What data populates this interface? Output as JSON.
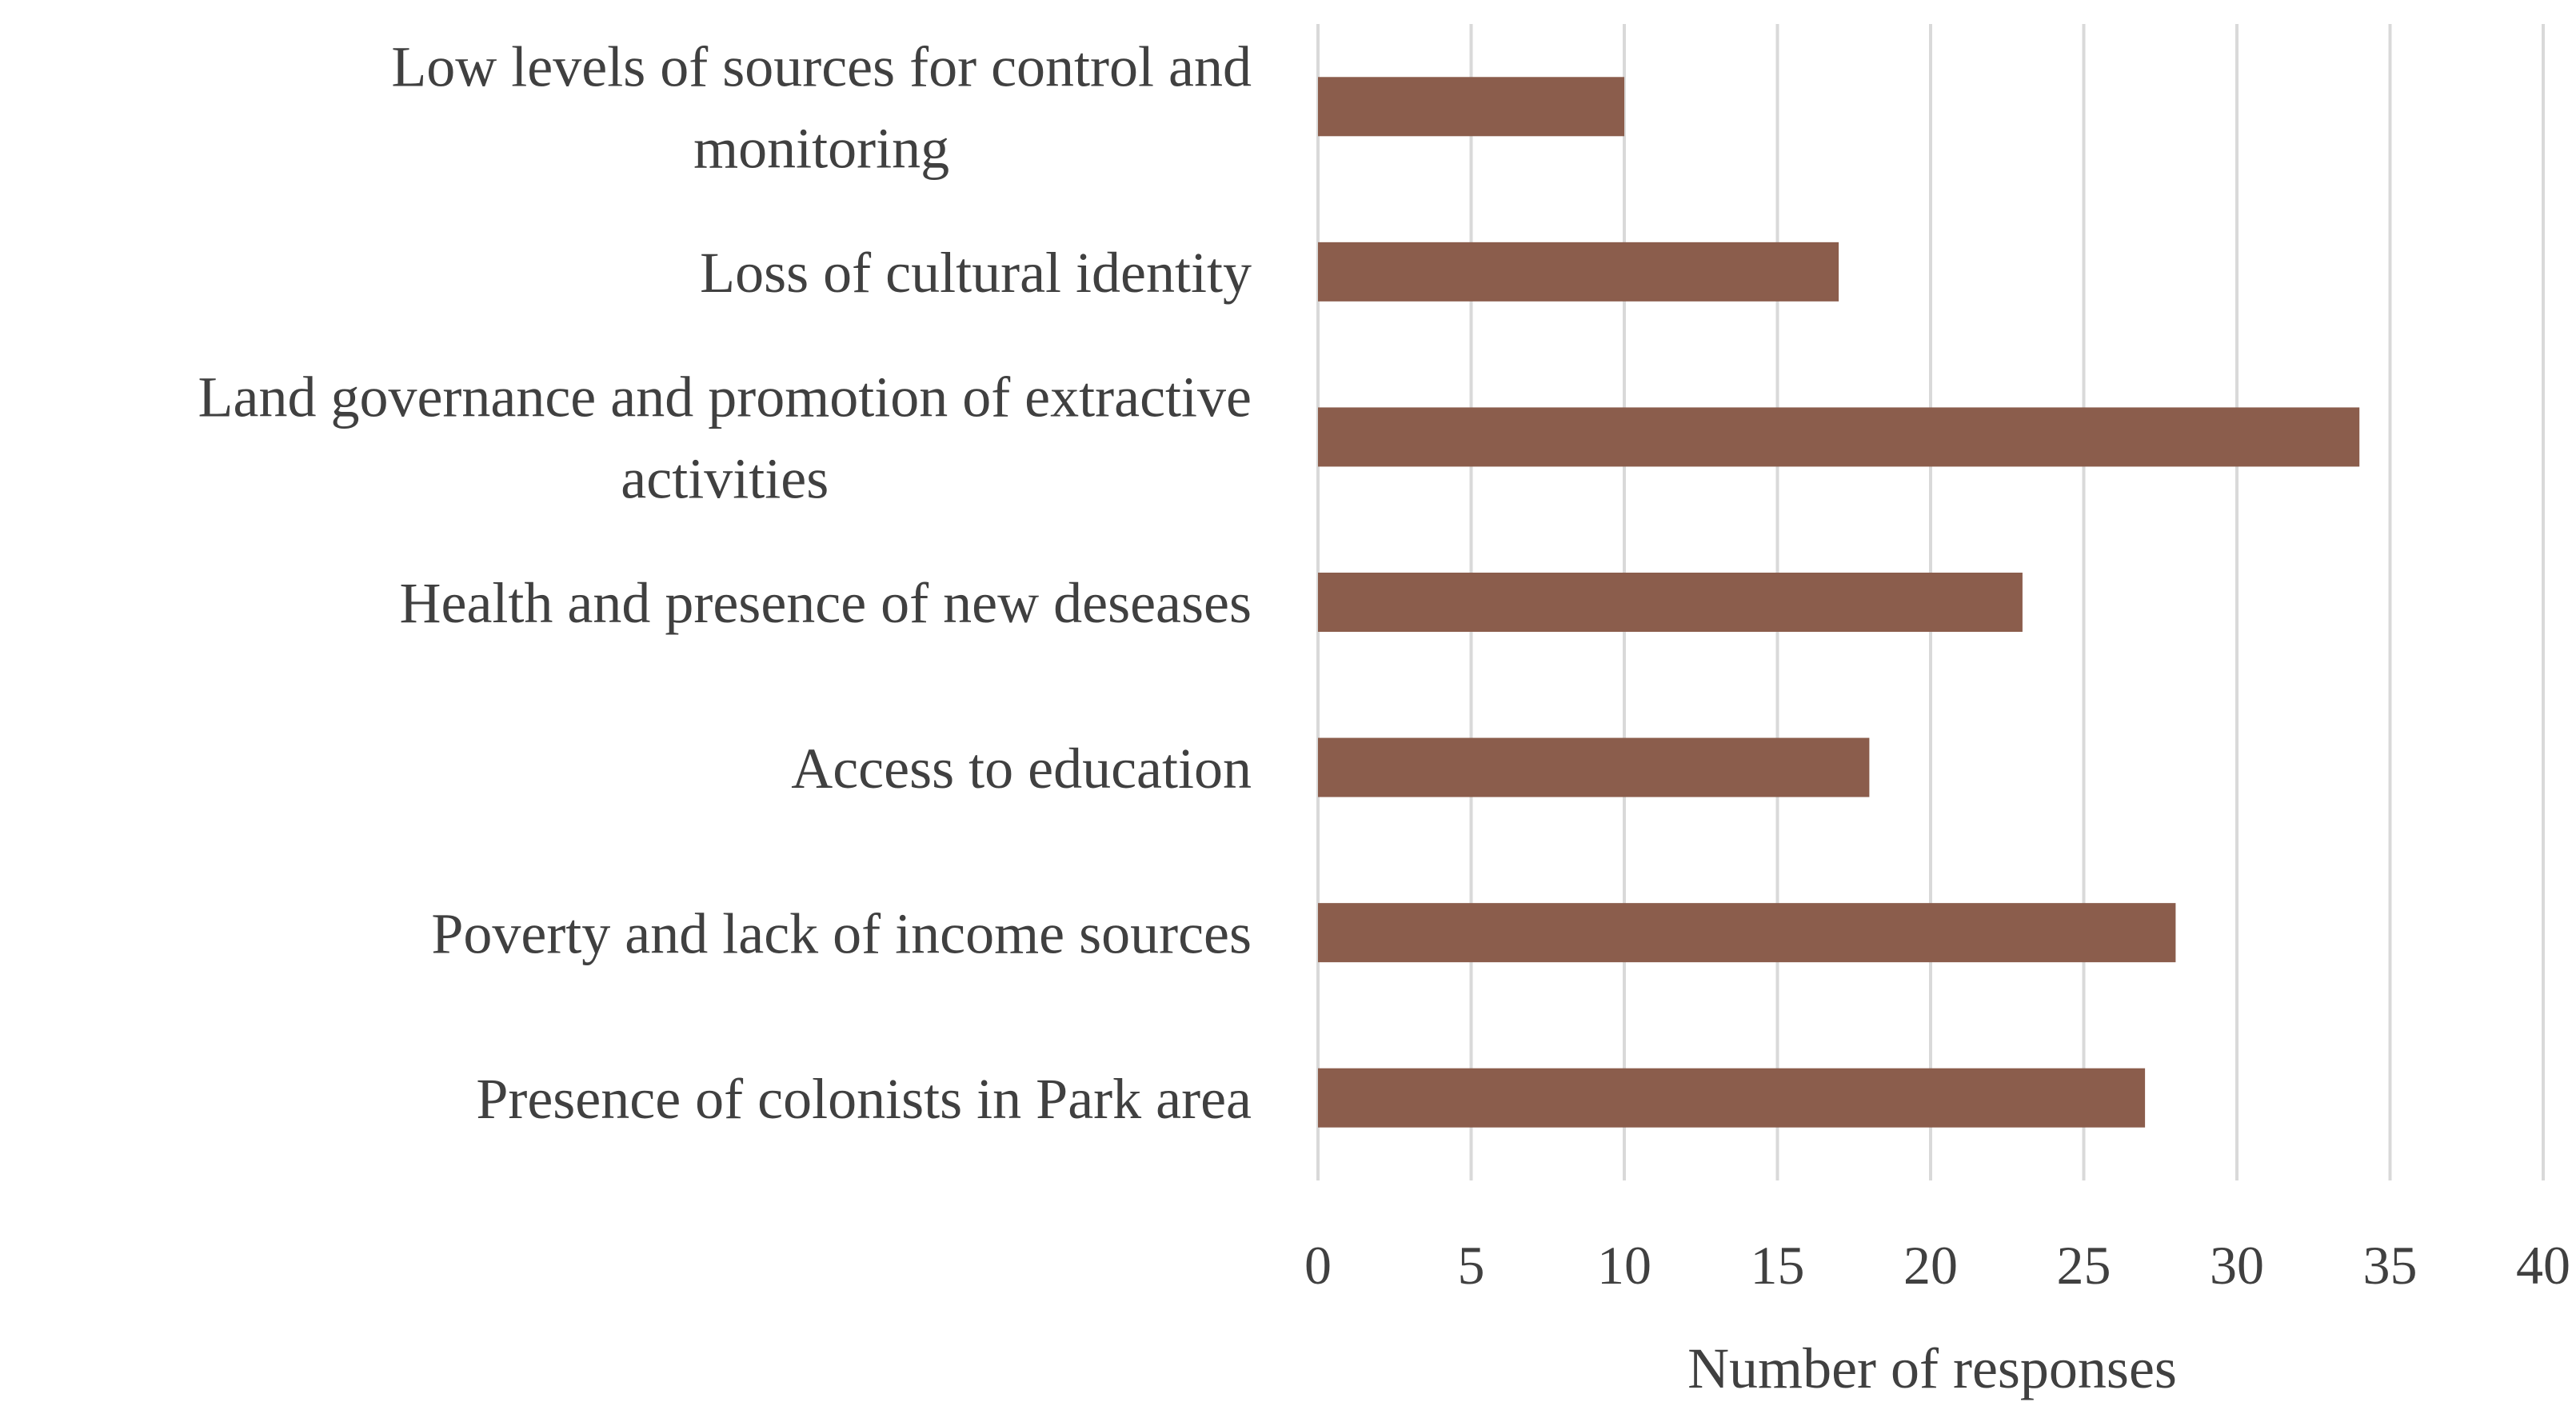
{
  "chart_data": {
    "type": "bar",
    "orientation": "horizontal",
    "categories": [
      [
        "Low levels of sources for control and",
        "monitoring"
      ],
      [
        "Loss of cultural identity"
      ],
      [
        "Land governance and promotion of extractive",
        "activities"
      ],
      [
        "Health and presence of new deseases"
      ],
      [
        "Access to education"
      ],
      [
        "Poverty and lack of income sources"
      ],
      [
        "Presence of colonists in Park area"
      ]
    ],
    "values": [
      10,
      17,
      34,
      23,
      18,
      28,
      27
    ],
    "xlabel": "Number of responses",
    "ylabel": "",
    "title": "",
    "xlim": [
      0,
      40
    ],
    "xticks": [
      0,
      5,
      10,
      15,
      20,
      25,
      30,
      35,
      40
    ],
    "grid": "vertical",
    "legend": "none",
    "colors": {
      "bar": "#8b5d4c",
      "grid": "#d9d9d9",
      "text": "#404040"
    }
  }
}
